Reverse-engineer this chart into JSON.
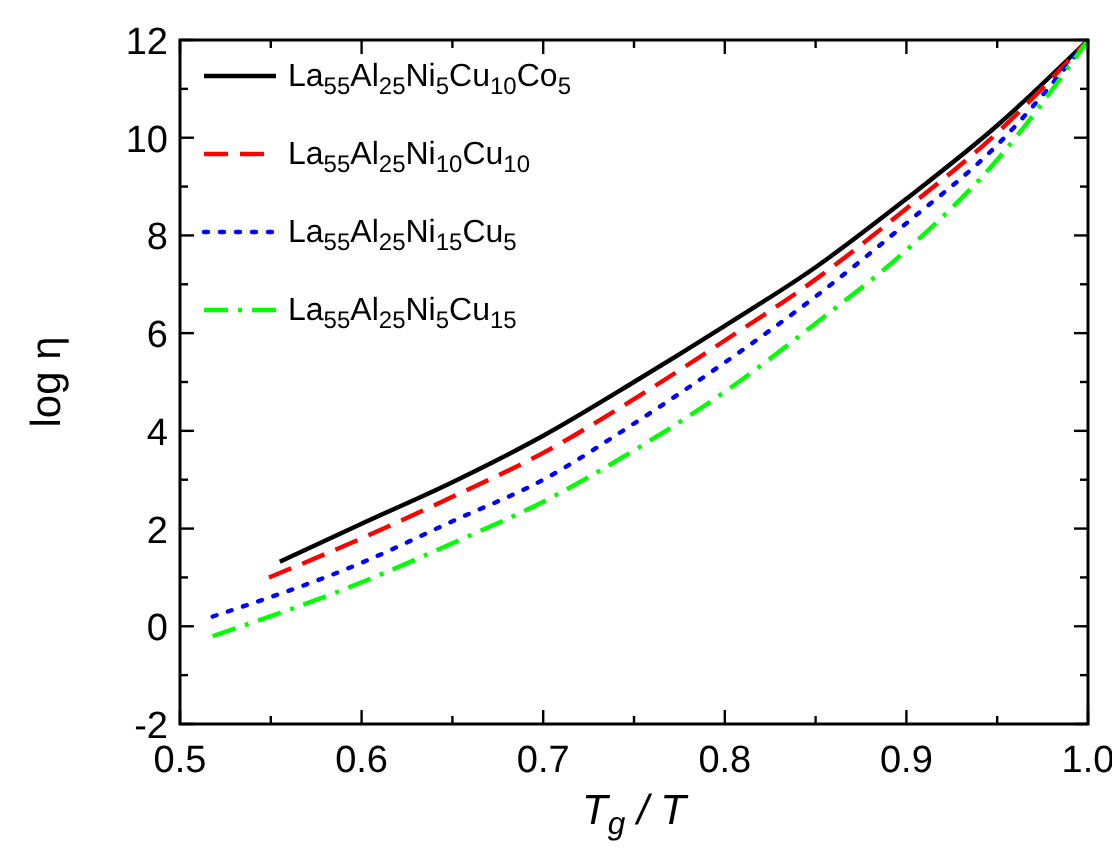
{
  "chart_data": {
    "type": "line",
    "xlabel": "T$_{g}$ / T",
    "ylabel": "log η",
    "xlim": [
      0.5,
      1.0
    ],
    "ylim": [
      -2,
      12
    ],
    "xticks": [
      0.5,
      {
        "value": 0.55,
        "label": null
      },
      0.6,
      {
        "value": 0.65,
        "label": null
      },
      0.7,
      {
        "value": 0.75,
        "label": null
      },
      0.8,
      {
        "value": 0.85,
        "label": null
      },
      0.9,
      {
        "value": 0.95,
        "label": null
      },
      {
        "value": 1.0,
        "label": "1.0"
      }
    ],
    "yticks": [
      -2,
      {
        "value": -1,
        "label": null
      },
      0,
      {
        "value": 1,
        "label": null
      },
      2,
      {
        "value": 3,
        "label": null
      },
      4,
      {
        "value": 5,
        "label": null
      },
      6,
      {
        "value": 7,
        "label": null
      },
      8,
      {
        "value": 9,
        "label": null
      },
      10,
      {
        "value": 11,
        "label": null
      },
      12
    ],
    "grid": false,
    "legend": "top left",
    "series": [
      {
        "name": "La$_{55}$Al$_{25}$Ni$_{5}$Cu$_{10}$Co$_{5}$",
        "color": "#000000",
        "line_style": "solid",
        "x": [
          0.555,
          0.6,
          0.65,
          0.7,
          0.75,
          0.8,
          0.85,
          0.9,
          0.95,
          1.0
        ],
        "values": [
          1.32,
          2.1,
          2.95,
          3.9,
          5.0,
          6.15,
          7.35,
          8.75,
          10.25,
          12
        ]
      },
      {
        "name": "La$_{55}$Al$_{25}$Ni$_{10}$Cu$_{10}$",
        "color": "#ff0000",
        "line_style": "dashed",
        "x": [
          0.549,
          0.6,
          0.65,
          0.7,
          0.75,
          0.8,
          0.85,
          0.9,
          0.95,
          1.0
        ],
        "values": [
          1.0,
          1.8,
          2.65,
          3.55,
          4.65,
          5.85,
          7.1,
          8.55,
          10.1,
          12
        ]
      },
      {
        "name": "La$_{55}$Al$_{25}$Ni$_{15}$Cu$_{5}$",
        "color": "#0000ff",
        "line_style": "dotted",
        "x": [
          0.518,
          0.6,
          0.65,
          0.7,
          0.75,
          0.8,
          0.85,
          0.9,
          0.95,
          1.0
        ],
        "values": [
          0.2,
          1.3,
          2.15,
          3.0,
          4.15,
          5.4,
          6.75,
          8.25,
          9.85,
          12
        ]
      },
      {
        "name": "La$_{55}$Al$_{25}$Ni$_{5}$Cu$_{15}$",
        "color": "#00ff00",
        "line_style": "dashdot",
        "x": [
          0.518,
          0.6,
          0.65,
          0.7,
          0.75,
          0.8,
          0.85,
          0.9,
          0.95,
          1.0
        ],
        "values": [
          -0.2,
          0.9,
          1.7,
          2.55,
          3.6,
          4.8,
          6.2,
          7.7,
          9.55,
          12
        ]
      }
    ]
  }
}
